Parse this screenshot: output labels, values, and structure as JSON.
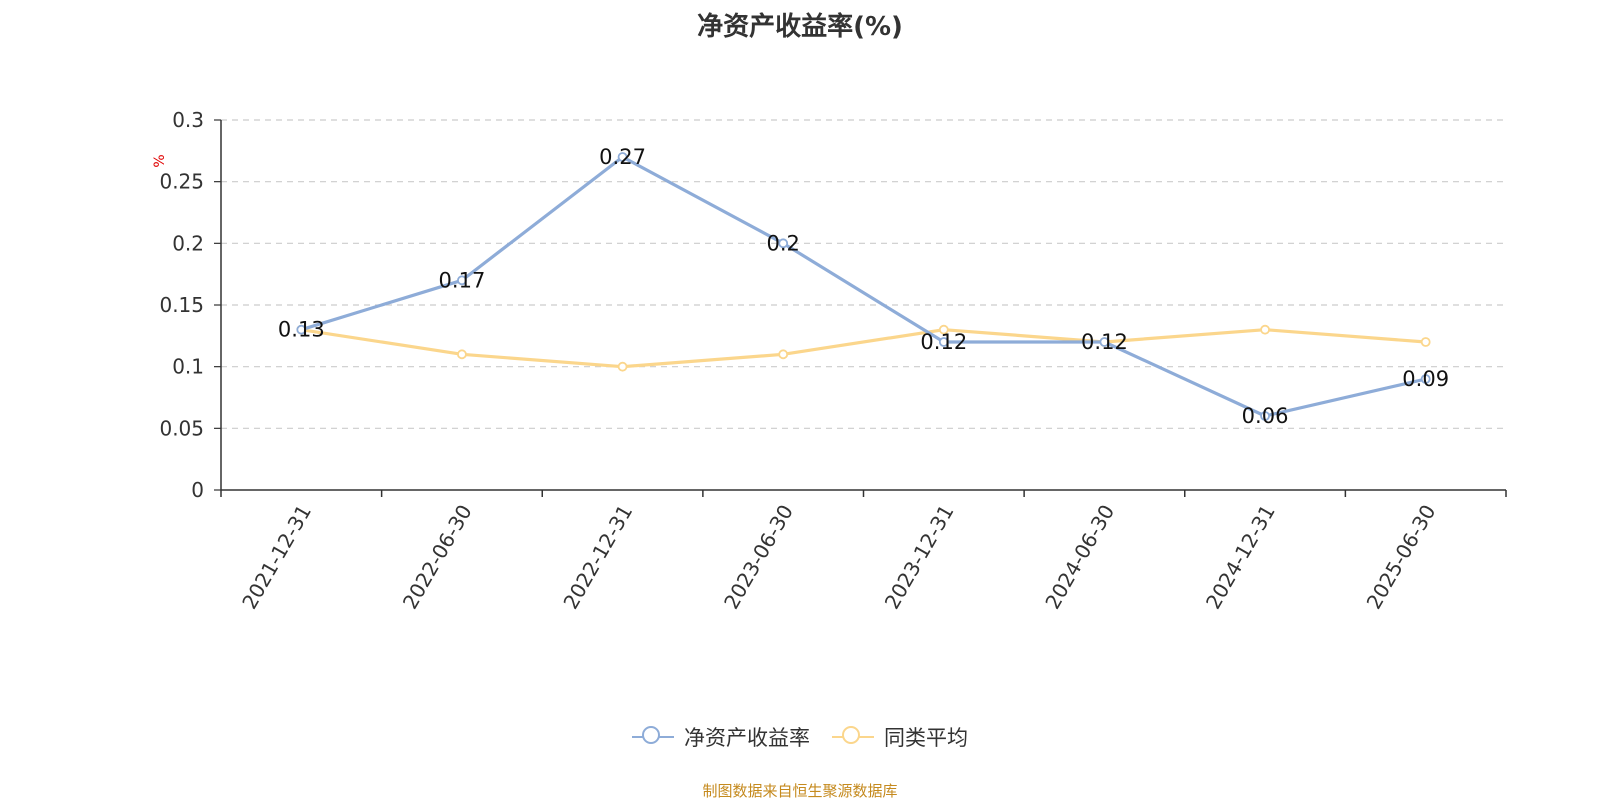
{
  "chart_data": {
    "type": "line",
    "title": "净资产收益率(%)",
    "ylabel": "%",
    "ylim": [
      0,
      0.3
    ],
    "yticks": [
      0,
      0.05,
      0.1,
      0.15,
      0.2,
      0.25,
      0.3
    ],
    "ytick_labels": [
      "0",
      "0.05",
      "0.1",
      "0.15",
      "0.2",
      "0.25",
      "0.3"
    ],
    "grid": true,
    "legend_position": "bottom",
    "categories": [
      "2021-12-31",
      "2022-06-30",
      "2022-12-31",
      "2023-06-30",
      "2023-12-31",
      "2024-06-30",
      "2024-12-31",
      "2025-06-30"
    ],
    "series": [
      {
        "name": "净资产收益率",
        "color": "#8eacd8",
        "values": [
          0.13,
          0.17,
          0.27,
          0.2,
          0.12,
          0.12,
          0.06,
          0.09
        ],
        "labels": [
          "0.13",
          "0.17",
          "0.27",
          "0.2",
          "0.12",
          "0.12",
          "0.06",
          "0.09"
        ]
      },
      {
        "name": "同类平均",
        "color": "#fbd68c",
        "values": [
          0.13,
          0.11,
          0.1,
          0.11,
          0.13,
          0.12,
          0.13,
          0.12
        ]
      }
    ]
  },
  "footer": {
    "source": "制图数据来自恒生聚源数据库"
  }
}
